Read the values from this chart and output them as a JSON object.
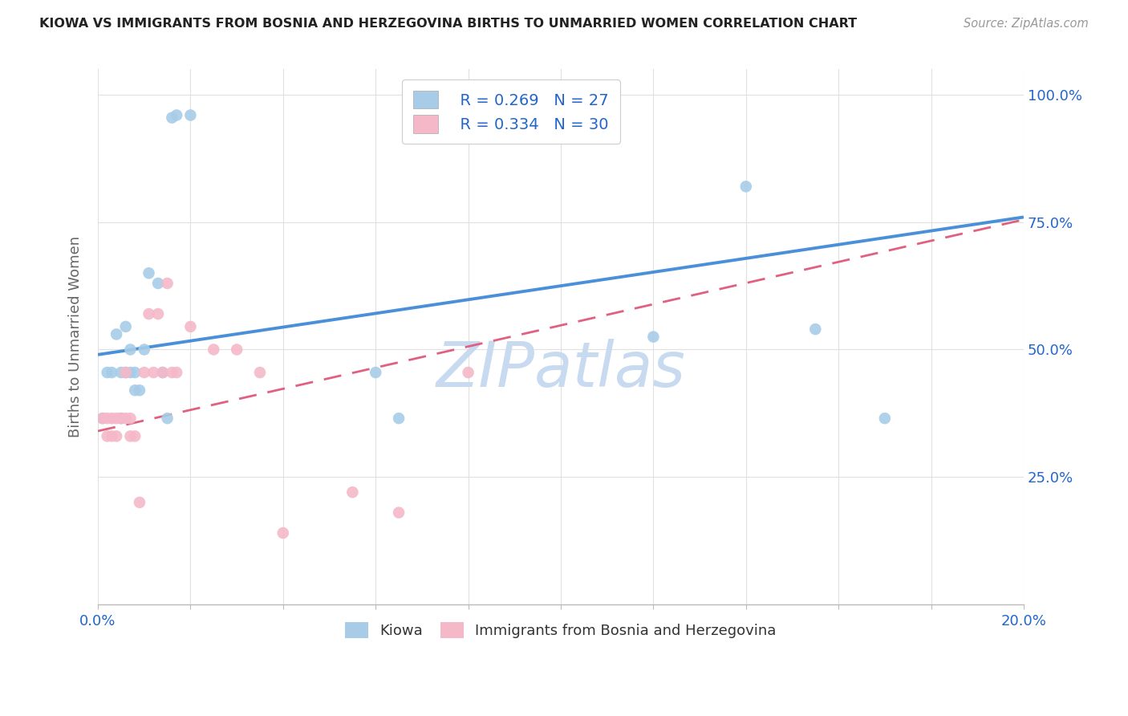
{
  "title": "KIOWA VS IMMIGRANTS FROM BOSNIA AND HERZEGOVINA BIRTHS TO UNMARRIED WOMEN CORRELATION CHART",
  "source": "Source: ZipAtlas.com",
  "ylabel": "Births to Unmarried Women",
  "xlim": [
    0.0,
    0.2
  ],
  "ylim": [
    0.0,
    1.05
  ],
  "ytick_labels_right": [
    "100.0%",
    "75.0%",
    "50.0%",
    "25.0%"
  ],
  "ytick_vals_right": [
    1.0,
    0.75,
    0.5,
    0.25
  ],
  "legend_R1": "R = 0.269",
  "legend_N1": "N = 27",
  "legend_R2": "R = 0.334",
  "legend_N2": "N = 30",
  "legend_label1": "Kiowa",
  "legend_label2": "Immigrants from Bosnia and Herzegovina",
  "color_blue": "#a8cce8",
  "color_pink": "#f5b8c8",
  "color_blue_line": "#4a90d9",
  "color_pink_line": "#e06080",
  "color_text_blue": "#2266cc",
  "background_color": "#ffffff",
  "grid_color": "#e0e0e0",
  "blue_scatter_x": [
    0.001,
    0.002,
    0.003,
    0.004,
    0.005,
    0.005,
    0.006,
    0.006,
    0.007,
    0.007,
    0.008,
    0.008,
    0.009,
    0.01,
    0.011,
    0.013,
    0.014,
    0.015,
    0.016,
    0.017,
    0.02,
    0.06,
    0.065,
    0.12,
    0.14,
    0.155,
    0.17
  ],
  "blue_scatter_y": [
    0.365,
    0.455,
    0.455,
    0.53,
    0.455,
    0.365,
    0.545,
    0.455,
    0.5,
    0.455,
    0.455,
    0.42,
    0.42,
    0.5,
    0.65,
    0.63,
    0.455,
    0.365,
    0.955,
    0.96,
    0.96,
    0.455,
    0.365,
    0.525,
    0.82,
    0.54,
    0.365
  ],
  "pink_scatter_x": [
    0.001,
    0.002,
    0.002,
    0.003,
    0.003,
    0.004,
    0.004,
    0.005,
    0.006,
    0.006,
    0.007,
    0.007,
    0.008,
    0.009,
    0.01,
    0.011,
    0.012,
    0.013,
    0.014,
    0.015,
    0.016,
    0.017,
    0.02,
    0.025,
    0.03,
    0.035,
    0.04,
    0.055,
    0.065,
    0.08
  ],
  "pink_scatter_y": [
    0.365,
    0.33,
    0.365,
    0.365,
    0.33,
    0.33,
    0.365,
    0.365,
    0.455,
    0.365,
    0.33,
    0.365,
    0.33,
    0.2,
    0.455,
    0.57,
    0.455,
    0.57,
    0.455,
    0.63,
    0.455,
    0.455,
    0.545,
    0.5,
    0.5,
    0.455,
    0.14,
    0.22,
    0.18,
    0.455
  ],
  "blue_line_x0": 0.0,
  "blue_line_y0": 0.49,
  "blue_line_x1": 0.2,
  "blue_line_y1": 0.76,
  "pink_line_x0": 0.0,
  "pink_line_y0": 0.34,
  "pink_line_x1": 0.2,
  "pink_line_y1": 0.755,
  "watermark": "ZIPatlas",
  "watermark_color": "#c8daf0"
}
